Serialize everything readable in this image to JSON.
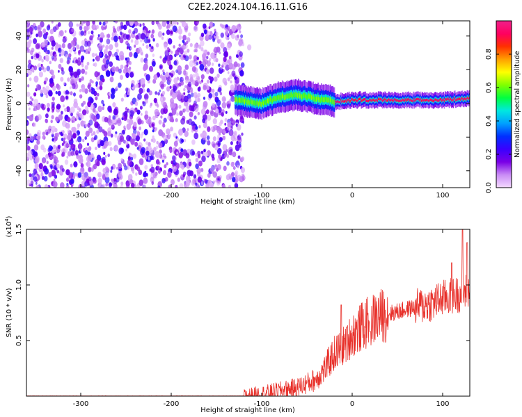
{
  "title": "C2E2.2024.104.16.11.G16",
  "chart_data": [
    {
      "type": "heatmap",
      "xlabel": "Height of straight line (km)",
      "ylabel": "Frequency (Hz)",
      "xlim": [
        -360,
        130
      ],
      "ylim": [
        -50,
        49
      ],
      "xticks": [
        -300,
        -200,
        -100,
        0,
        100
      ],
      "yticks": [
        -40,
        -20,
        0,
        20,
        40
      ],
      "grid": false,
      "colorbar": {
        "label": "Normalized spectral amplitude",
        "range": [
          0.0,
          1.0
        ],
        "ticks": [
          0.0,
          0.2,
          0.4,
          0.6,
          0.8
        ],
        "colors": [
          "#f4d9ff",
          "#c98cf5",
          "#7a00e6",
          "#3a00ff",
          "#0030ff",
          "#00a0ff",
          "#00e8e0",
          "#00ff40",
          "#80ff00",
          "#ffff00",
          "#ffa000",
          "#ff3000",
          "#ff0060",
          "#f0208a"
        ]
      },
      "regions": [
        {
          "name": "noise",
          "x_range": [
            -360,
            -120
          ],
          "y_range": [
            -50,
            49
          ],
          "level": 0.22
        },
        {
          "name": "signal-band",
          "x_range": [
            -130,
            130
          ],
          "center_freq": [
            [
              -130,
              2
            ],
            [
              -100,
              0
            ],
            [
              -80,
              4
            ],
            [
              -60,
              5
            ],
            [
              -40,
              3
            ],
            [
              -20,
              1
            ],
            [
              0,
              2
            ],
            [
              40,
              2
            ],
            [
              80,
              2
            ],
            [
              100,
              2
            ],
            [
              130,
              3
            ]
          ],
          "peak_level": 0.9
        }
      ]
    },
    {
      "type": "line",
      "xlabel": "Height of straight line (km)",
      "ylabel": "SNR (10 * v/v)",
      "y_scale_label": "(x10",
      "y_scale_exp": "4",
      "y_scale_close": ")",
      "xlim": [
        -360,
        130
      ],
      "ylim": [
        0,
        1.5
      ],
      "xticks": [
        -300,
        -200,
        -100,
        0,
        100
      ],
      "yticks": [
        0.5,
        1.0,
        1.5
      ],
      "ytick_labels": [
        "0.5",
        "1.0",
        "1.5"
      ],
      "grid": false,
      "color": "#e8302a",
      "trend": [
        [
          -360,
          0.0
        ],
        [
          -120,
          0.0
        ],
        [
          -100,
          0.02
        ],
        [
          -80,
          0.05
        ],
        [
          -60,
          0.08
        ],
        [
          -40,
          0.15
        ],
        [
          -30,
          0.25
        ],
        [
          -20,
          0.38
        ],
        [
          -10,
          0.45
        ],
        [
          0,
          0.55
        ],
        [
          10,
          0.62
        ],
        [
          20,
          0.68
        ],
        [
          30,
          0.72
        ],
        [
          40,
          0.74
        ],
        [
          50,
          0.76
        ],
        [
          60,
          0.78
        ],
        [
          70,
          0.8
        ],
        [
          80,
          0.82
        ],
        [
          90,
          0.84
        ],
        [
          100,
          0.88
        ],
        [
          110,
          0.9
        ],
        [
          120,
          0.92
        ],
        [
          130,
          0.95
        ]
      ],
      "peaks": [
        [
          -12,
          0.82
        ],
        [
          -6,
          0.62
        ],
        [
          20,
          0.58
        ],
        [
          110,
          1.2
        ],
        [
          122,
          1.5
        ],
        [
          127,
          1.38
        ]
      ]
    }
  ]
}
